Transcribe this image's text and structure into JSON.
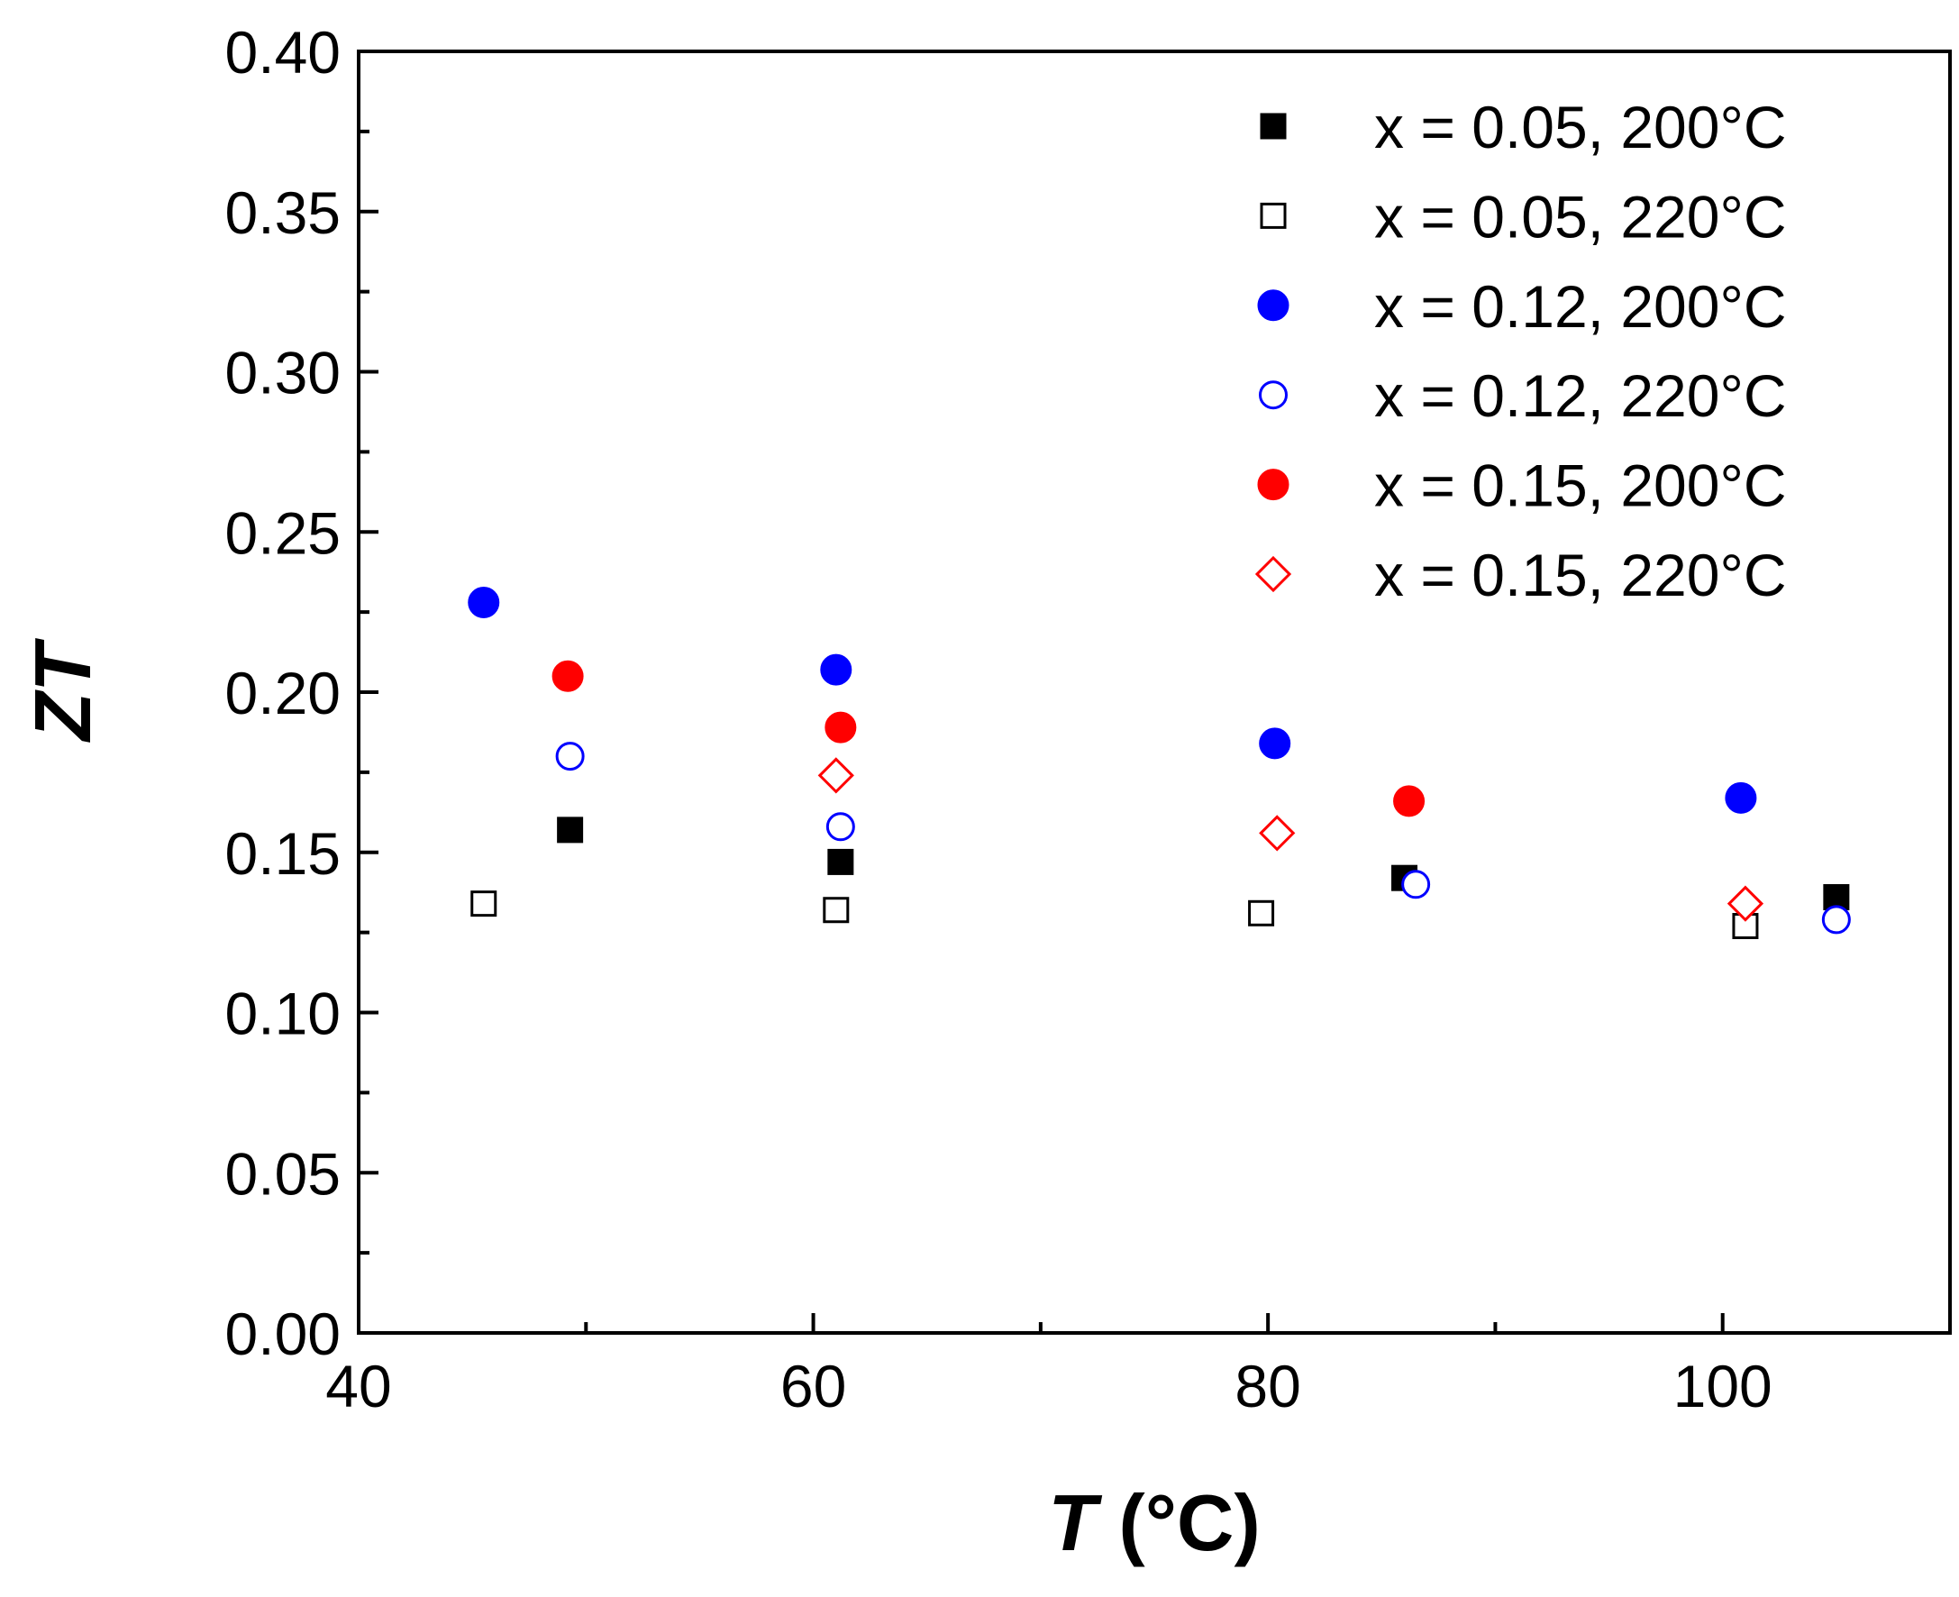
{
  "chart_data": {
    "type": "scatter",
    "title": "",
    "xlabel_italic": "T",
    "xlabel_rest": " (°C)",
    "ylabel": "ZT",
    "xlim": [
      40,
      110
    ],
    "ylim": [
      0.0,
      0.4
    ],
    "xticks": [
      40,
      60,
      80,
      100
    ],
    "xtick_labels": [
      "40",
      "60",
      "80",
      "100"
    ],
    "yticks": [
      0.0,
      0.05,
      0.1,
      0.15,
      0.2,
      0.25,
      0.3,
      0.35,
      0.4
    ],
    "ytick_labels": [
      "0.00",
      "0.05",
      "0.10",
      "0.15",
      "0.20",
      "0.25",
      "0.30",
      "0.35",
      "0.40"
    ],
    "grid": false,
    "legend_position": "top-right",
    "series": [
      {
        "name": "x = 0.05, 200°C",
        "marker": "square",
        "filled": true,
        "color": "#000000",
        "x": [
          49.3,
          61.2,
          86.0,
          105.0
        ],
        "y": [
          0.157,
          0.147,
          0.142,
          0.136
        ]
      },
      {
        "name": "x = 0.05, 220°C",
        "marker": "square",
        "filled": false,
        "color": "#000000",
        "x": [
          45.5,
          61.0,
          79.7,
          101.0
        ],
        "y": [
          0.134,
          0.132,
          0.131,
          0.127
        ]
      },
      {
        "name": "x = 0.12, 200°C",
        "marker": "circle",
        "filled": true,
        "color": "#0000ff",
        "x": [
          45.5,
          61.0,
          80.3,
          100.8
        ],
        "y": [
          0.228,
          0.207,
          0.184,
          0.167
        ]
      },
      {
        "name": "x = 0.12, 220°C",
        "marker": "circle",
        "filled": false,
        "color": "#0000ff",
        "x": [
          49.3,
          61.2,
          86.5,
          105.0
        ],
        "y": [
          0.18,
          0.158,
          0.14,
          0.129
        ]
      },
      {
        "name": "x = 0.15, 200°C",
        "marker": "circle",
        "filled": true,
        "color": "#ff0000",
        "x": [
          49.2,
          61.2,
          86.2
        ],
        "y": [
          0.205,
          0.189,
          0.166
        ]
      },
      {
        "name": "x = 0.15, 220°C",
        "marker": "diamond",
        "filled": false,
        "color": "#ff0000",
        "x": [
          61.0,
          80.4,
          101.0
        ],
        "y": [
          0.174,
          0.156,
          0.134
        ]
      }
    ]
  }
}
